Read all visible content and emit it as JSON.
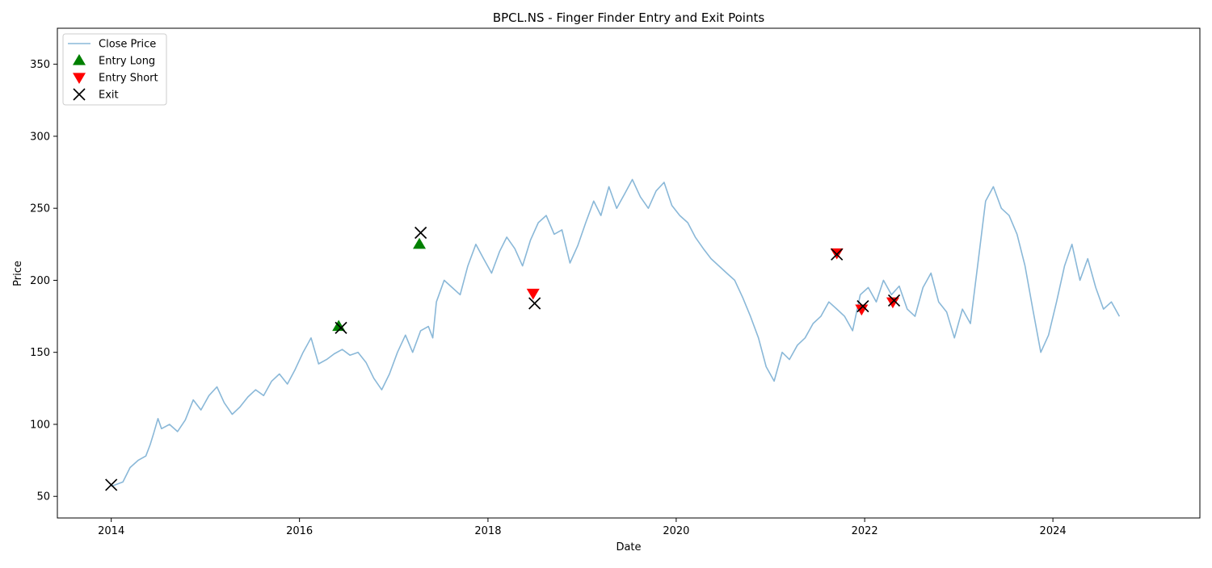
{
  "colors": {
    "close_price": "#8ab8d8",
    "entry_long": "#008000",
    "entry_short": "#ff0000",
    "exit": "#000000"
  },
  "chart_data": {
    "type": "line",
    "title": "BPCL.NS - Finger Finder Entry and Exit Points",
    "xlabel": "Date",
    "ylabel": "Price",
    "xlim": [
      "2013-06-06",
      "2025-07-24"
    ],
    "ylim": [
      35,
      375
    ],
    "x_ticks": [
      "2014",
      "2016",
      "2018",
      "2020",
      "2022",
      "2024"
    ],
    "x_tick_dates": [
      "2014-01-01",
      "2016-01-01",
      "2018-01-01",
      "2020-01-01",
      "2022-01-01",
      "2024-01-01"
    ],
    "y_ticks": [
      "50",
      "100",
      "150",
      "200",
      "250",
      "300",
      "350"
    ],
    "y_tick_values": [
      50,
      100,
      150,
      200,
      250,
      300,
      350
    ],
    "grid": false,
    "legend_position": "top-left",
    "legend": [
      {
        "label": "Close Price",
        "marker": "line"
      },
      {
        "label": "Entry Long",
        "marker": "triangle-up"
      },
      {
        "label": "Entry Short",
        "marker": "triangle-down"
      },
      {
        "label": "Exit",
        "marker": "x"
      }
    ],
    "series": [
      {
        "name": "Close Price",
        "marker": "line",
        "points": [
          [
            "2014-01-01",
            57
          ],
          [
            "2014-02-15",
            60
          ],
          [
            "2014-03-15",
            70
          ],
          [
            "2014-04-15",
            75
          ],
          [
            "2014-05-15",
            78
          ],
          [
            "2014-06-01",
            86
          ],
          [
            "2014-06-15",
            94
          ],
          [
            "2014-07-01",
            104
          ],
          [
            "2014-07-15",
            97
          ],
          [
            "2014-08-15",
            100
          ],
          [
            "2014-09-15",
            95
          ],
          [
            "2014-10-15",
            103
          ],
          [
            "2014-11-15",
            117
          ],
          [
            "2014-12-15",
            110
          ],
          [
            "2015-01-15",
            120
          ],
          [
            "2015-02-15",
            126
          ],
          [
            "2015-03-15",
            115
          ],
          [
            "2015-04-15",
            107
          ],
          [
            "2015-05-15",
            112
          ],
          [
            "2015-06-15",
            119
          ],
          [
            "2015-07-15",
            124
          ],
          [
            "2015-08-15",
            120
          ],
          [
            "2015-09-15",
            130
          ],
          [
            "2015-10-15",
            135
          ],
          [
            "2015-11-15",
            128
          ],
          [
            "2015-12-15",
            138
          ],
          [
            "2016-01-15",
            150
          ],
          [
            "2016-02-15",
            160
          ],
          [
            "2016-03-15",
            142
          ],
          [
            "2016-04-15",
            145
          ],
          [
            "2016-05-15",
            149
          ],
          [
            "2016-06-15",
            152
          ],
          [
            "2016-07-15",
            148
          ],
          [
            "2016-08-15",
            150
          ],
          [
            "2016-09-15",
            143
          ],
          [
            "2016-10-15",
            132
          ],
          [
            "2016-11-15",
            124
          ],
          [
            "2016-12-15",
            135
          ],
          [
            "2017-01-15",
            150
          ],
          [
            "2017-02-15",
            162
          ],
          [
            "2017-03-15",
            150
          ],
          [
            "2017-04-15",
            165
          ],
          [
            "2017-05-15",
            168
          ],
          [
            "2017-06-01",
            160
          ],
          [
            "2017-06-15",
            185
          ],
          [
            "2017-07-15",
            200
          ],
          [
            "2017-08-15",
            195
          ],
          [
            "2017-09-15",
            190
          ],
          [
            "2017-10-15",
            210
          ],
          [
            "2017-11-15",
            225
          ],
          [
            "2017-12-15",
            215
          ],
          [
            "2018-01-15",
            205
          ],
          [
            "2018-02-15",
            220
          ],
          [
            "2018-03-15",
            230
          ],
          [
            "2018-04-15",
            222
          ],
          [
            "2018-05-15",
            210
          ],
          [
            "2018-06-15",
            228
          ],
          [
            "2018-07-15",
            240
          ],
          [
            "2018-08-15",
            245
          ],
          [
            "2018-09-15",
            232
          ],
          [
            "2018-10-15",
            235
          ],
          [
            "2018-11-15",
            212
          ],
          [
            "2018-12-15",
            224
          ],
          [
            "2019-01-15",
            240
          ],
          [
            "2019-02-15",
            255
          ],
          [
            "2019-03-15",
            245
          ],
          [
            "2019-04-15",
            265
          ],
          [
            "2019-05-15",
            250
          ],
          [
            "2019-06-15",
            260
          ],
          [
            "2019-07-15",
            270
          ],
          [
            "2019-08-15",
            258
          ],
          [
            "2019-09-15",
            250
          ],
          [
            "2019-10-15",
            262
          ],
          [
            "2019-11-15",
            268
          ],
          [
            "2019-12-15",
            252
          ],
          [
            "2020-01-15",
            245
          ],
          [
            "2020-02-15",
            240
          ],
          [
            "2020-03-15",
            230
          ],
          [
            "2020-04-15",
            222
          ],
          [
            "2020-05-15",
            215
          ],
          [
            "2020-06-15",
            210
          ],
          [
            "2020-07-15",
            205
          ],
          [
            "2020-08-15",
            200
          ],
          [
            "2020-09-15",
            188
          ],
          [
            "2020-10-15",
            175
          ],
          [
            "2020-11-15",
            160
          ],
          [
            "2020-12-15",
            140
          ],
          [
            "2021-01-15",
            130
          ],
          [
            "2021-02-15",
            150
          ],
          [
            "2021-03-15",
            145
          ],
          [
            "2021-04-15",
            155
          ],
          [
            "2021-05-15",
            160
          ],
          [
            "2021-06-15",
            170
          ],
          [
            "2021-07-15",
            175
          ],
          [
            "2021-08-15",
            185
          ],
          [
            "2021-09-15",
            180
          ],
          [
            "2021-10-15",
            175
          ],
          [
            "2021-11-15",
            165
          ],
          [
            "2021-12-15",
            190
          ],
          [
            "2022-01-15",
            195
          ],
          [
            "2022-02-15",
            185
          ],
          [
            "2022-03-15",
            200
          ],
          [
            "2022-04-15",
            190
          ],
          [
            "2022-05-15",
            196
          ],
          [
            "2022-06-15",
            180
          ],
          [
            "2022-07-15",
            175
          ],
          [
            "2022-08-15",
            195
          ],
          [
            "2022-09-15",
            205
          ],
          [
            "2022-10-15",
            185
          ],
          [
            "2022-11-15",
            178
          ],
          [
            "2022-12-15",
            160
          ],
          [
            "2023-01-15",
            180
          ],
          [
            "2023-02-15",
            170
          ],
          [
            "2023-03-15",
            210
          ],
          [
            "2023-04-15",
            255
          ],
          [
            "2023-05-15",
            265
          ],
          [
            "2023-06-15",
            250
          ],
          [
            "2023-07-15",
            245
          ],
          [
            "2023-08-15",
            232
          ],
          [
            "2023-09-15",
            210
          ],
          [
            "2023-10-15",
            180
          ],
          [
            "2023-11-15",
            150
          ],
          [
            "2023-12-15",
            162
          ],
          [
            "2024-01-15",
            185
          ],
          [
            "2024-02-15",
            210
          ],
          [
            "2024-03-15",
            225
          ],
          [
            "2024-04-15",
            200
          ],
          [
            "2024-05-15",
            215
          ],
          [
            "2024-06-15",
            195
          ],
          [
            "2024-07-15",
            180
          ],
          [
            "2024-08-15",
            185
          ],
          [
            "2024-09-15",
            175
          ]
        ]
      },
      {
        "name": "Entry Long",
        "marker": "triangle-up",
        "points": [
          [
            "2016-06-01",
            168
          ],
          [
            "2017-04-10",
            225
          ]
        ]
      },
      {
        "name": "Entry Short",
        "marker": "triangle-down",
        "points": [
          [
            "2018-06-25",
            191
          ],
          [
            "2021-09-15",
            219
          ],
          [
            "2021-12-20",
            180
          ],
          [
            "2022-04-20",
            185
          ]
        ]
      },
      {
        "name": "Exit",
        "marker": "x",
        "points": [
          [
            "2014-01-01",
            58
          ],
          [
            "2016-06-10",
            167
          ],
          [
            "2017-04-15",
            233
          ],
          [
            "2018-07-01",
            184
          ],
          [
            "2021-09-15",
            218
          ],
          [
            "2021-12-25",
            182
          ],
          [
            "2022-04-25",
            186
          ]
        ]
      }
    ]
  }
}
